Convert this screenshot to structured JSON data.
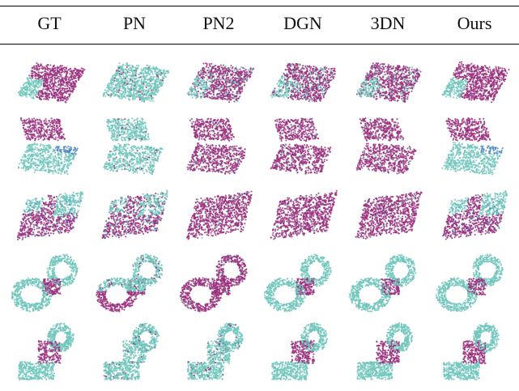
{
  "columns": [
    "GT",
    "PN",
    "PN2",
    "DGN",
    "3DN",
    "Ours"
  ],
  "colors": {
    "part_a": "#6fc6bb",
    "part_b": "#9a2f7e",
    "part_c": "#4c86c3",
    "rule": "#000000"
  },
  "rows": [
    {
      "shape": "tray",
      "cells": [
        {
          "method": "GT",
          "pattern": "gt"
        },
        {
          "method": "PN",
          "pattern": "all_a"
        },
        {
          "method": "PN2",
          "pattern": "gt_noisy"
        },
        {
          "method": "DGN",
          "pattern": "gt_noisy"
        },
        {
          "method": "3DN",
          "pattern": "gt_noisy"
        },
        {
          "method": "Ours",
          "pattern": "gt"
        }
      ]
    },
    {
      "shape": "chair",
      "cells": [
        {
          "method": "GT",
          "pattern": "gt"
        },
        {
          "method": "PN",
          "pattern": "all_a"
        },
        {
          "method": "PN2",
          "pattern": "all_b"
        },
        {
          "method": "DGN",
          "pattern": "all_b"
        },
        {
          "method": "3DN",
          "pattern": "all_b"
        },
        {
          "method": "Ours",
          "pattern": "gt"
        }
      ]
    },
    {
      "shape": "box",
      "cells": [
        {
          "method": "GT",
          "pattern": "gt"
        },
        {
          "method": "PN",
          "pattern": "gt_noisy"
        },
        {
          "method": "PN2",
          "pattern": "all_b"
        },
        {
          "method": "DGN",
          "pattern": "all_b"
        },
        {
          "method": "3DN",
          "pattern": "all_b"
        },
        {
          "method": "Ours",
          "pattern": "gt"
        }
      ]
    },
    {
      "shape": "rings",
      "cells": [
        {
          "method": "GT",
          "pattern": "gt"
        },
        {
          "method": "PN",
          "pattern": "lower_b"
        },
        {
          "method": "PN2",
          "pattern": "all_b"
        },
        {
          "method": "DGN",
          "pattern": "gt"
        },
        {
          "method": "3DN",
          "pattern": "gt"
        },
        {
          "method": "Ours",
          "pattern": "gt"
        }
      ]
    },
    {
      "shape": "bracket",
      "cells": [
        {
          "method": "GT",
          "pattern": "gt"
        },
        {
          "method": "PN",
          "pattern": "all_a"
        },
        {
          "method": "PN2",
          "pattern": "all_a"
        },
        {
          "method": "DGN",
          "pattern": "gt"
        },
        {
          "method": "3DN",
          "pattern": "gt"
        },
        {
          "method": "Ours",
          "pattern": "gt"
        }
      ]
    }
  ]
}
